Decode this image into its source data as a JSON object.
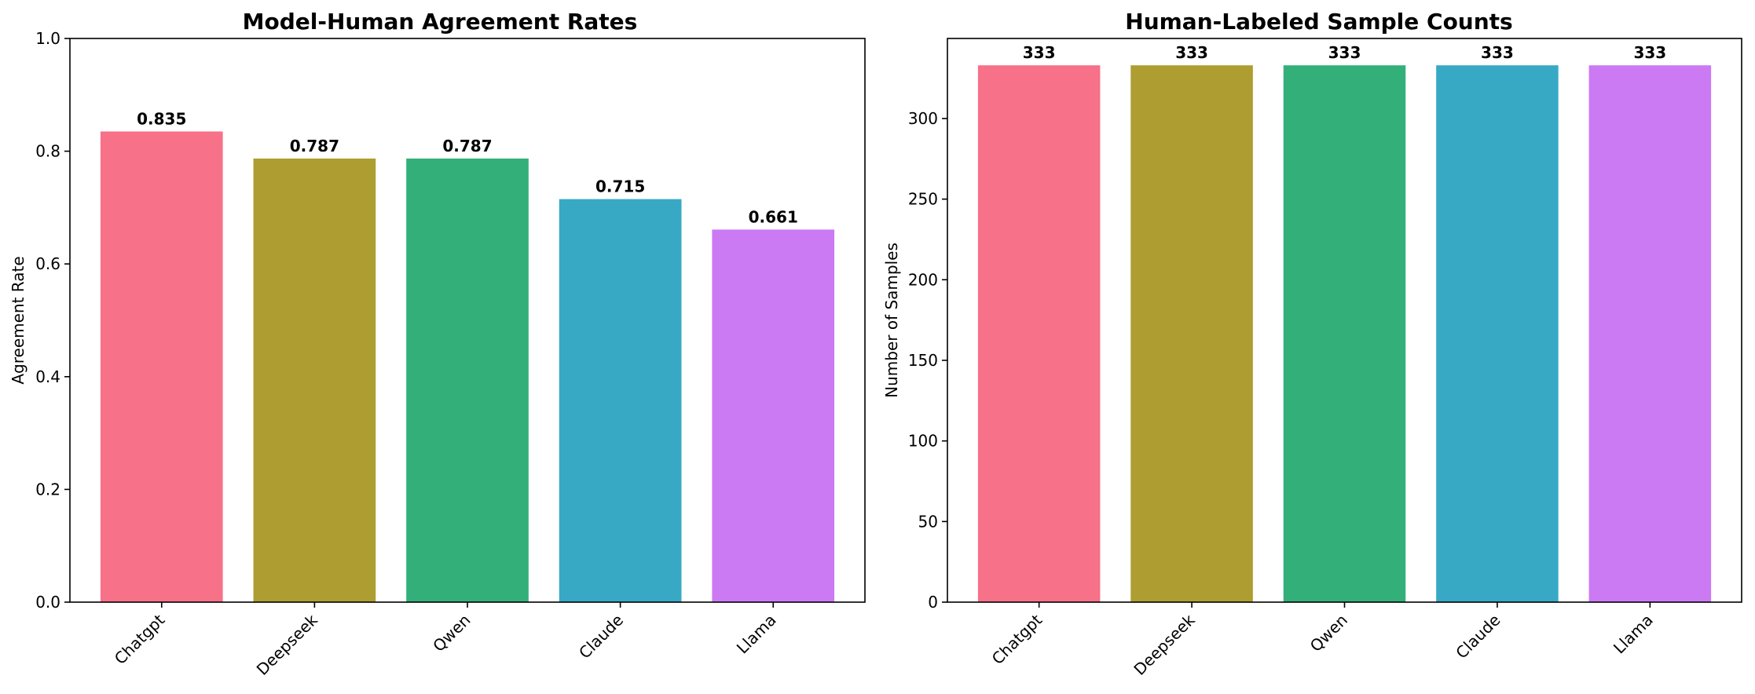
{
  "chart_data": [
    {
      "type": "bar",
      "title": "Model-Human Agreement Rates",
      "xlabel": "",
      "ylabel": "Agreement Rate",
      "categories": [
        "Chatgpt",
        "Deepseek",
        "Qwen",
        "Claude",
        "Llama"
      ],
      "values": [
        0.835,
        0.787,
        0.787,
        0.715,
        0.661
      ],
      "value_labels": [
        "0.835",
        "0.787",
        "0.787",
        "0.715",
        "0.661"
      ],
      "ylim": [
        0,
        1.0
      ],
      "yticks": [
        0.0,
        0.2,
        0.4,
        0.6,
        0.8,
        1.0
      ],
      "ytick_labels": [
        "0.0",
        "0.2",
        "0.4",
        "0.6",
        "0.8",
        "1.0"
      ],
      "colors": [
        "#f77189",
        "#ae9d31",
        "#33b07a",
        "#38a9c5",
        "#cc7af4"
      ],
      "grid": false,
      "xtick_rotation": 45
    },
    {
      "type": "bar",
      "title": "Human-Labeled Sample Counts",
      "xlabel": "",
      "ylabel": "Number of Samples",
      "categories": [
        "Chatgpt",
        "Deepseek",
        "Qwen",
        "Claude",
        "Llama"
      ],
      "values": [
        333,
        333,
        333,
        333,
        333
      ],
      "value_labels": [
        "333",
        "333",
        "333",
        "333",
        "333"
      ],
      "ylim": [
        0,
        349.65
      ],
      "yticks": [
        0,
        50,
        100,
        150,
        200,
        250,
        300
      ],
      "ytick_labels": [
        "0",
        "50",
        "100",
        "150",
        "200",
        "250",
        "300"
      ],
      "colors": [
        "#f77189",
        "#ae9d31",
        "#33b07a",
        "#38a9c5",
        "#cc7af4"
      ],
      "grid": false,
      "xtick_rotation": 45
    }
  ]
}
